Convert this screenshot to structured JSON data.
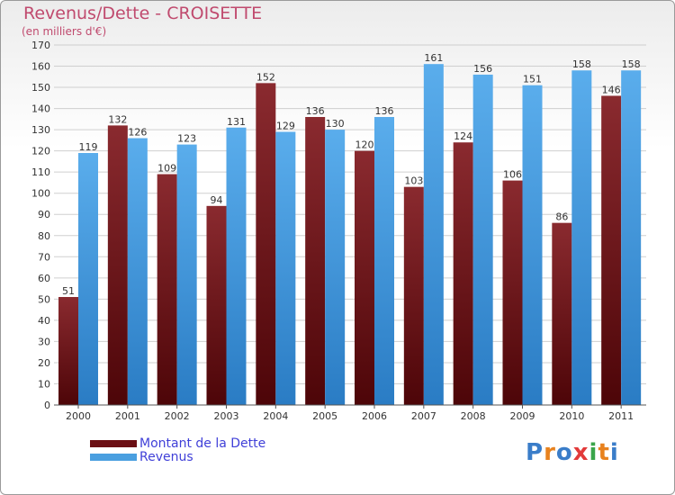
{
  "header": {
    "title": "Revenus/Dette - CROISETTE",
    "subtitle": "(en milliers d'€)"
  },
  "logo": {
    "letters": [
      "P",
      "r",
      "o",
      "x",
      "i",
      "t",
      "i"
    ],
    "colors": [
      "#3a7dc9",
      "#e8821e",
      "#3a7dc9",
      "#e23a3a",
      "#3aa54a",
      "#e8821e",
      "#3a7dc9"
    ]
  },
  "colors": {
    "dette": "#7b1f24",
    "revenus": "#4a9fe0",
    "grid": "#cfcfcf"
  },
  "chart_data": {
    "type": "bar",
    "title": "Revenus/Dette - CROISETTE",
    "subtitle": "(en milliers d'€)",
    "categories": [
      "2000",
      "2001",
      "2002",
      "2003",
      "2004",
      "2005",
      "2006",
      "2007",
      "2008",
      "2009",
      "2010",
      "2011"
    ],
    "series": [
      {
        "name": "Montant de la Dette",
        "values": [
          51,
          132,
          109,
          94,
          152,
          136,
          120,
          103,
          124,
          106,
          86,
          146
        ]
      },
      {
        "name": "Revenus",
        "values": [
          119,
          126,
          123,
          131,
          129,
          130,
          136,
          161,
          156,
          151,
          158,
          158
        ]
      }
    ],
    "ylim": [
      0,
      170
    ],
    "ytick_step": 10,
    "grid": true,
    "legend": "bottom-left"
  }
}
